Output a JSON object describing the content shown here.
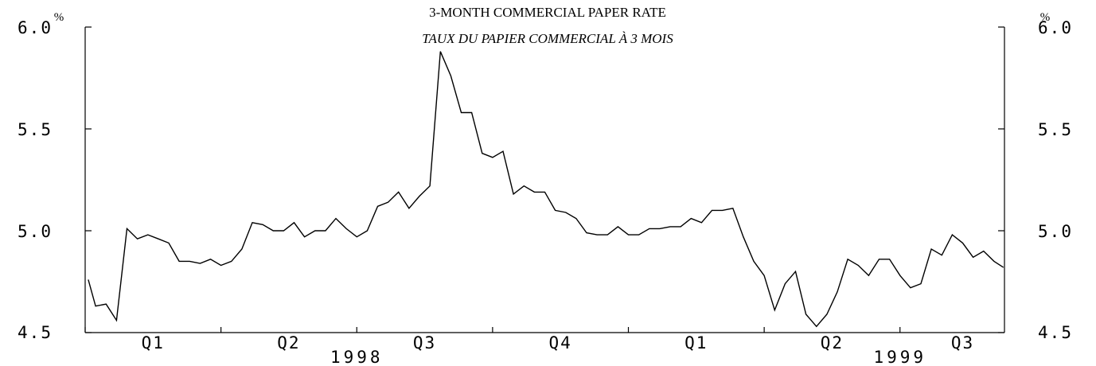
{
  "chart_data": {
    "type": "line",
    "title": "3-MONTH COMMERCIAL PAPER RATE",
    "subtitle": "TAUX DU PAPIER COMMERCIAL À 3 MOIS",
    "unit_left": "%",
    "unit_right": "%",
    "ylim": [
      4.5,
      6.0
    ],
    "yticks": [
      {
        "value": 6.0,
        "label": "6.0"
      },
      {
        "value": 5.5,
        "label": "5.5"
      },
      {
        "value": 5.0,
        "label": "5.0"
      },
      {
        "value": 4.5,
        "label": "4.5"
      }
    ],
    "quarter_labels": [
      {
        "label": "Q1",
        "center_week": 6.5
      },
      {
        "label": "Q2",
        "center_week": 19.5
      },
      {
        "label": "Q3",
        "center_week": 32.5
      },
      {
        "label": "Q4",
        "center_week": 45.5
      },
      {
        "label": "Q1",
        "center_week": 58.5
      },
      {
        "label": "Q2",
        "center_week": 71.5
      },
      {
        "label": "Q3",
        "center_week": 84
      }
    ],
    "year_labels": [
      {
        "label": "1998",
        "center_week": 26
      },
      {
        "label": "1999",
        "center_week": 78
      }
    ],
    "xlim": [
      0,
      88
    ],
    "x_ticks_weeks": [
      0,
      13,
      26,
      39,
      52,
      65,
      78
    ],
    "grid": false,
    "series": [
      {
        "x_weeks": [
          0.3,
          1,
          2,
          3,
          4,
          5,
          6,
          7,
          8,
          9,
          10,
          11,
          12,
          13,
          14,
          15,
          16,
          17,
          18,
          19,
          20,
          21,
          22,
          23,
          24,
          25,
          26,
          27,
          28,
          29,
          30,
          31,
          32,
          33,
          34,
          35,
          36,
          37,
          38,
          39,
          40,
          41,
          42,
          43,
          44,
          45,
          46,
          47,
          48,
          49,
          50,
          51,
          52,
          53,
          54,
          55,
          56,
          57,
          58,
          59,
          60,
          61,
          62,
          63,
          64,
          65,
          66,
          67,
          68,
          69,
          70,
          71,
          72,
          73,
          74,
          75,
          76,
          77,
          78,
          79,
          80,
          81,
          82,
          83,
          84,
          85,
          86,
          87,
          87.9
        ],
        "values": [
          4.76,
          4.63,
          4.64,
          4.56,
          5.01,
          4.96,
          4.98,
          4.96,
          4.94,
          4.85,
          4.85,
          4.84,
          4.86,
          4.83,
          4.85,
          4.91,
          5.04,
          5.03,
          5.0,
          5.0,
          5.04,
          4.97,
          5.0,
          5.0,
          5.06,
          5.01,
          4.97,
          5.0,
          5.12,
          5.14,
          5.19,
          5.11,
          5.17,
          5.22,
          5.88,
          5.76,
          5.58,
          5.58,
          5.38,
          5.36,
          5.39,
          5.18,
          5.22,
          5.19,
          5.19,
          5.1,
          5.09,
          5.06,
          4.99,
          4.98,
          4.98,
          5.02,
          4.98,
          4.98,
          5.01,
          5.01,
          5.02,
          5.02,
          5.06,
          5.04,
          5.1,
          5.1,
          5.11,
          4.97,
          4.85,
          4.78,
          4.61,
          4.74,
          4.8,
          4.59,
          4.53,
          4.59,
          4.7,
          4.86,
          4.83,
          4.78,
          4.86,
          4.86,
          4.78,
          4.72,
          4.74,
          4.91,
          4.88,
          4.98,
          4.94,
          4.87,
          4.9,
          4.85,
          4.82
        ]
      }
    ]
  }
}
